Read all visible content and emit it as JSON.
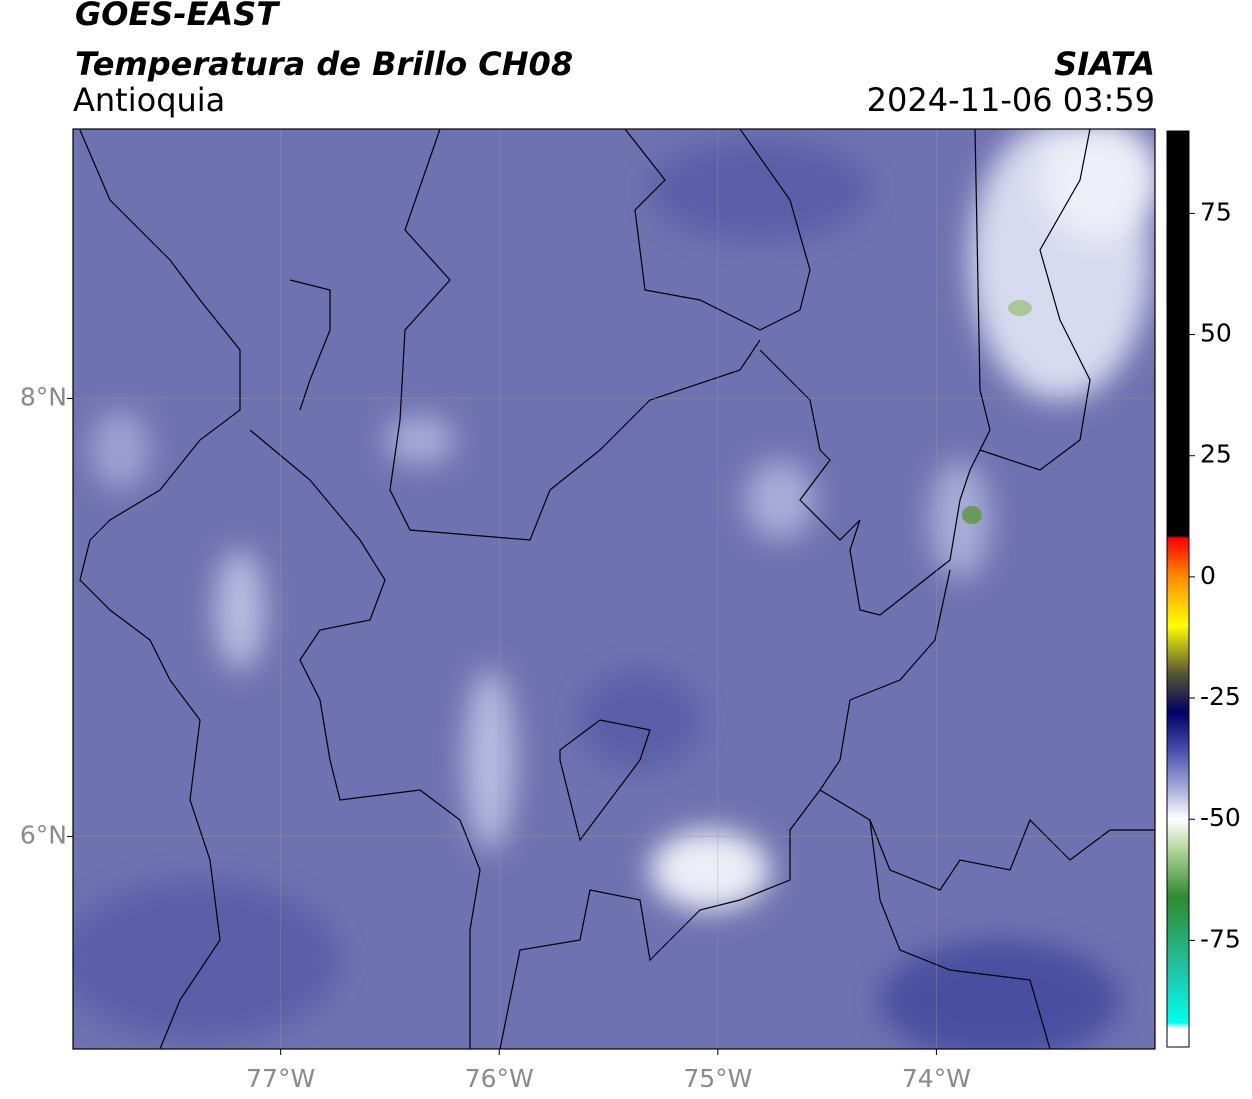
{
  "header": {
    "title": "GOES-EAST",
    "subtitle": "Temperatura de Brillo CH08",
    "region": "Antioquia",
    "source": "SIATA",
    "timestamp": "2024-11-06 03:59"
  },
  "map": {
    "xlim": [
      -77.95,
      -73.0
    ],
    "ylim": [
      5.03,
      9.23
    ],
    "xticks": [
      {
        "value": -77,
        "label": "77°W"
      },
      {
        "value": -76,
        "label": "76°W"
      },
      {
        "value": -75,
        "label": "75°W"
      },
      {
        "value": -74,
        "label": "74°W"
      }
    ],
    "yticks": [
      {
        "value": 6,
        "label": "6°N"
      },
      {
        "value": 8,
        "label": "8°N"
      }
    ],
    "grid": true,
    "background": "#6f72b0"
  },
  "colorbar": {
    "lim": [
      -97,
      92
    ],
    "ticks": [
      75,
      50,
      25,
      0,
      -25,
      -50,
      -75
    ],
    "stops": [
      {
        "value": 92,
        "color": "#000000"
      },
      {
        "value": 8.5,
        "color": "#000000"
      },
      {
        "value": 8,
        "color": "#ff0000"
      },
      {
        "value": 0,
        "color": "#ff8c00"
      },
      {
        "value": -10,
        "color": "#ffff00"
      },
      {
        "value": -20,
        "color": "#555533"
      },
      {
        "value": -28,
        "color": "#000066"
      },
      {
        "value": -36,
        "color": "#4a52b0"
      },
      {
        "value": -45,
        "color": "#b8bce0"
      },
      {
        "value": -50,
        "color": "#ffffff"
      },
      {
        "value": -56,
        "color": "#b8d8a0"
      },
      {
        "value": -66,
        "color": "#2e8b2e"
      },
      {
        "value": -80,
        "color": "#20c0a0"
      },
      {
        "value": -92,
        "color": "#00ffee"
      },
      {
        "value": -93,
        "color": "#ffffff"
      },
      {
        "value": -97,
        "color": "#ffffff"
      }
    ]
  }
}
